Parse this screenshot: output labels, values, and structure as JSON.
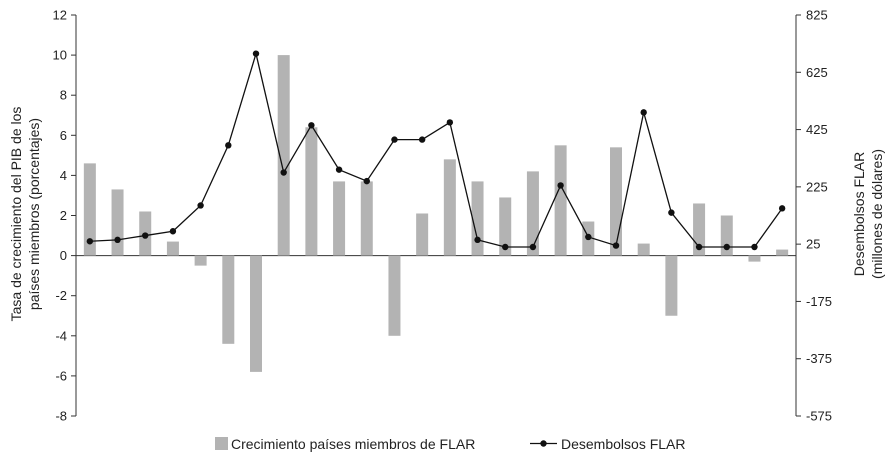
{
  "chart_data": {
    "type": "bar",
    "title": "",
    "x_tick_labels_shown": false,
    "y_left": {
      "label_line1": "Tasa de crecimiento del PIB de los",
      "label_line2": "países miembros (porcentajes)",
      "lim": [
        -8,
        12
      ],
      "ticks": [
        12,
        10,
        8,
        6,
        4,
        2,
        0,
        -2,
        -4,
        -6,
        -8
      ]
    },
    "y_right": {
      "label_line1": "Desembolsos FLAR",
      "label_line2": "(millones de dólares)",
      "lim": [
        -575,
        825
      ],
      "ticks": [
        825,
        625,
        425,
        225,
        25,
        -175,
        -375,
        -575
      ]
    },
    "categories_count": 26,
    "series": [
      {
        "name": "Crecimiento países miembros de FLAR",
        "kind": "bar",
        "axis": "left",
        "color": "#b3b3b3",
        "values": [
          4.6,
          3.3,
          2.2,
          0.7,
          -0.5,
          -4.4,
          -5.8,
          10.0,
          6.4,
          3.7,
          3.7,
          -4.0,
          2.1,
          4.8,
          3.7,
          2.9,
          4.2,
          5.5,
          1.7,
          5.4,
          0.6,
          -3.0,
          2.6,
          2.0,
          -0.3,
          0.3
        ]
      },
      {
        "name": "Desembolsos FLAR",
        "kind": "line",
        "axis": "right",
        "color": "#111111",
        "values": [
          35,
          40,
          55,
          70,
          160,
          370,
          690,
          275,
          440,
          285,
          245,
          390,
          390,
          450,
          40,
          15,
          15,
          230,
          50,
          20,
          485,
          135,
          15,
          15,
          15,
          150
        ]
      }
    ],
    "legend": {
      "placement": "bottom",
      "bar_label": "Crecimiento países miembros de FLAR",
      "line_label": "Desembolsos FLAR"
    }
  }
}
